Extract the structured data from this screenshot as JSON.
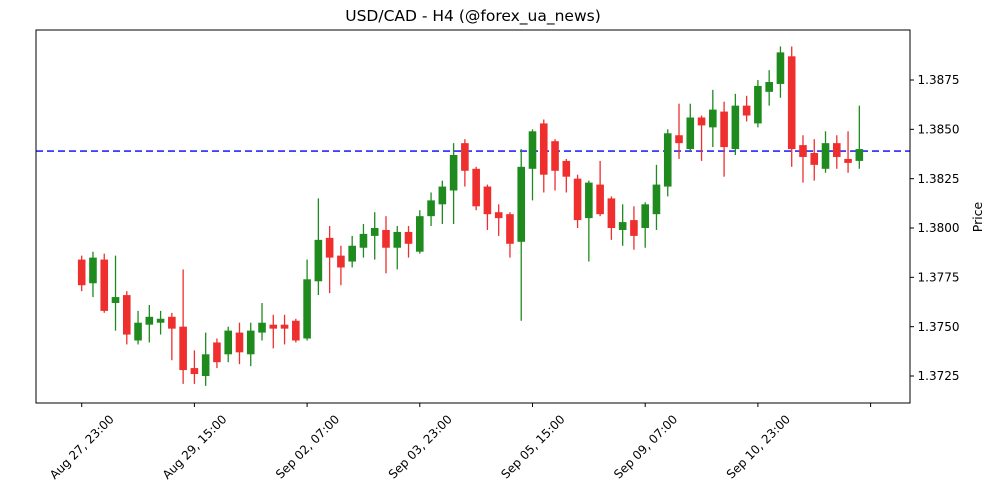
{
  "figure": {
    "title": "USD/CAD - H4 (@forex_ua_news)"
  },
  "chart_data": {
    "type": "candlestick",
    "title": "USD/CAD - H4 (@forex_ua_news)",
    "symbol": "USD/CAD",
    "timeframe": "H4",
    "ylabel": "Price",
    "ylim": [
      1.3711,
      1.39
    ],
    "grid": false,
    "legend": false,
    "y_ticks": [
      {
        "label": "1.3725",
        "value": 1.3725
      },
      {
        "label": "1.3750",
        "value": 1.375
      },
      {
        "label": "1.3775",
        "value": 1.3775
      },
      {
        "label": "1.3800",
        "value": 1.38
      },
      {
        "label": "1.3825",
        "value": 1.3825
      },
      {
        "label": "1.3850",
        "value": 1.385
      },
      {
        "label": "1.3875",
        "value": 1.3875
      }
    ],
    "x_ticks": [
      {
        "candle_index": 0,
        "label": "Aug 27, 23:00"
      },
      {
        "candle_index": 10,
        "label": "Aug 29, 15:00"
      },
      {
        "candle_index": 20,
        "label": "Sep 02, 07:00"
      },
      {
        "candle_index": 30,
        "label": "Sep 03, 23:00"
      },
      {
        "candle_index": 40,
        "label": "Sep 05, 15:00"
      },
      {
        "candle_index": 50,
        "label": "Sep 09, 07:00"
      },
      {
        "candle_index": 60,
        "label": "Sep 10, 23:00"
      },
      {
        "candle_index": 70,
        "label": ""
      }
    ],
    "hline": {
      "price": 1.3839,
      "color": "#0000ff",
      "style": "dashed"
    },
    "colors": {
      "up": "#1f8b1f",
      "down": "#ef2e2e",
      "hline": "#0000ff",
      "axis": "#000000",
      "background": "#ffffff"
    },
    "candles_format": [
      "open",
      "high",
      "low",
      "close"
    ],
    "candles": [
      [
        1.3784,
        1.3786,
        1.3768,
        1.3771
      ],
      [
        1.3772,
        1.3788,
        1.3765,
        1.3785
      ],
      [
        1.3784,
        1.3787,
        1.3757,
        1.3758
      ],
      [
        1.3762,
        1.3786,
        1.3748,
        1.3765
      ],
      [
        1.3766,
        1.3768,
        1.3741,
        1.3746
      ],
      [
        1.3743,
        1.3758,
        1.3741,
        1.3752
      ],
      [
        1.3751,
        1.3761,
        1.3742,
        1.3755
      ],
      [
        1.3752,
        1.3758,
        1.3746,
        1.3754
      ],
      [
        1.3755,
        1.3757,
        1.3733,
        1.3749
      ],
      [
        1.375,
        1.3779,
        1.3721,
        1.3728
      ],
      [
        1.3729,
        1.3738,
        1.3721,
        1.3726
      ],
      [
        1.3725,
        1.3747,
        1.372,
        1.3736
      ],
      [
        1.3742,
        1.3744,
        1.3729,
        1.3732
      ],
      [
        1.3736,
        1.375,
        1.3732,
        1.3748
      ],
      [
        1.3747,
        1.3752,
        1.3731,
        1.3737
      ],
      [
        1.3736,
        1.3752,
        1.373,
        1.3748
      ],
      [
        1.3747,
        1.3762,
        1.3743,
        1.3752
      ],
      [
        1.3751,
        1.3756,
        1.3739,
        1.3749
      ],
      [
        1.3751,
        1.3756,
        1.3741,
        1.3749
      ],
      [
        1.3753,
        1.3754,
        1.3742,
        1.3743
      ],
      [
        1.3744,
        1.3784,
        1.3743,
        1.3774
      ],
      [
        1.3773,
        1.3815,
        1.3766,
        1.3794
      ],
      [
        1.3795,
        1.3801,
        1.3767,
        1.3785
      ],
      [
        1.3786,
        1.3791,
        1.3771,
        1.378
      ],
      [
        1.3783,
        1.3796,
        1.378,
        1.3791
      ],
      [
        1.379,
        1.3802,
        1.3785,
        1.3797
      ],
      [
        1.3796,
        1.3808,
        1.3784,
        1.38
      ],
      [
        1.3799,
        1.3806,
        1.3777,
        1.379
      ],
      [
        1.379,
        1.3801,
        1.3779,
        1.3798
      ],
      [
        1.3798,
        1.3801,
        1.3785,
        1.3792
      ],
      [
        1.3788,
        1.3809,
        1.3787,
        1.3806
      ],
      [
        1.3806,
        1.3818,
        1.3801,
        1.3814
      ],
      [
        1.3812,
        1.3824,
        1.3802,
        1.3821
      ],
      [
        1.3819,
        1.3843,
        1.3802,
        1.3837
      ],
      [
        1.3843,
        1.3845,
        1.3821,
        1.3829
      ],
      [
        1.383,
        1.3831,
        1.3809,
        1.3811
      ],
      [
        1.3821,
        1.3822,
        1.3799,
        1.3807
      ],
      [
        1.3808,
        1.3812,
        1.3796,
        1.3805
      ],
      [
        1.3807,
        1.3808,
        1.3785,
        1.3792
      ],
      [
        1.3793,
        1.384,
        1.3753,
        1.3831
      ],
      [
        1.383,
        1.385,
        1.3814,
        1.3849
      ],
      [
        1.3853,
        1.3855,
        1.3818,
        1.3827
      ],
      [
        1.3844,
        1.3845,
        1.3819,
        1.3829
      ],
      [
        1.3834,
        1.3835,
        1.3818,
        1.3826
      ],
      [
        1.3825,
        1.3827,
        1.38,
        1.3804
      ],
      [
        1.3805,
        1.3824,
        1.3783,
        1.3823
      ],
      [
        1.3822,
        1.3834,
        1.3806,
        1.3807
      ],
      [
        1.3815,
        1.3816,
        1.3794,
        1.38
      ],
      [
        1.3799,
        1.3812,
        1.3791,
        1.3803
      ],
      [
        1.3804,
        1.3811,
        1.3789,
        1.3796
      ],
      [
        1.38,
        1.3813,
        1.379,
        1.3812
      ],
      [
        1.3807,
        1.3832,
        1.3799,
        1.3822
      ],
      [
        1.3821,
        1.385,
        1.3816,
        1.3848
      ],
      [
        1.3847,
        1.3863,
        1.3835,
        1.3843
      ],
      [
        1.384,
        1.3863,
        1.3839,
        1.3856
      ],
      [
        1.3856,
        1.3857,
        1.3834,
        1.3852
      ],
      [
        1.3851,
        1.387,
        1.3841,
        1.386
      ],
      [
        1.3859,
        1.3864,
        1.3826,
        1.3841
      ],
      [
        1.384,
        1.3868,
        1.3837,
        1.3862
      ],
      [
        1.3862,
        1.3867,
        1.3854,
        1.3857
      ],
      [
        1.3853,
        1.3875,
        1.3851,
        1.3872
      ],
      [
        1.3869,
        1.388,
        1.3862,
        1.3874
      ],
      [
        1.3873,
        1.3892,
        1.3866,
        1.3889
      ],
      [
        1.3887,
        1.3892,
        1.3831,
        1.384
      ],
      [
        1.3842,
        1.3847,
        1.3823,
        1.3836
      ],
      [
        1.3838,
        1.3845,
        1.3824,
        1.3832
      ],
      [
        1.383,
        1.3849,
        1.3828,
        1.3843
      ],
      [
        1.3843,
        1.3847,
        1.383,
        1.3836
      ],
      [
        1.3835,
        1.3849,
        1.3828,
        1.3833
      ],
      [
        1.3834,
        1.3862,
        1.383,
        1.384
      ]
    ]
  }
}
